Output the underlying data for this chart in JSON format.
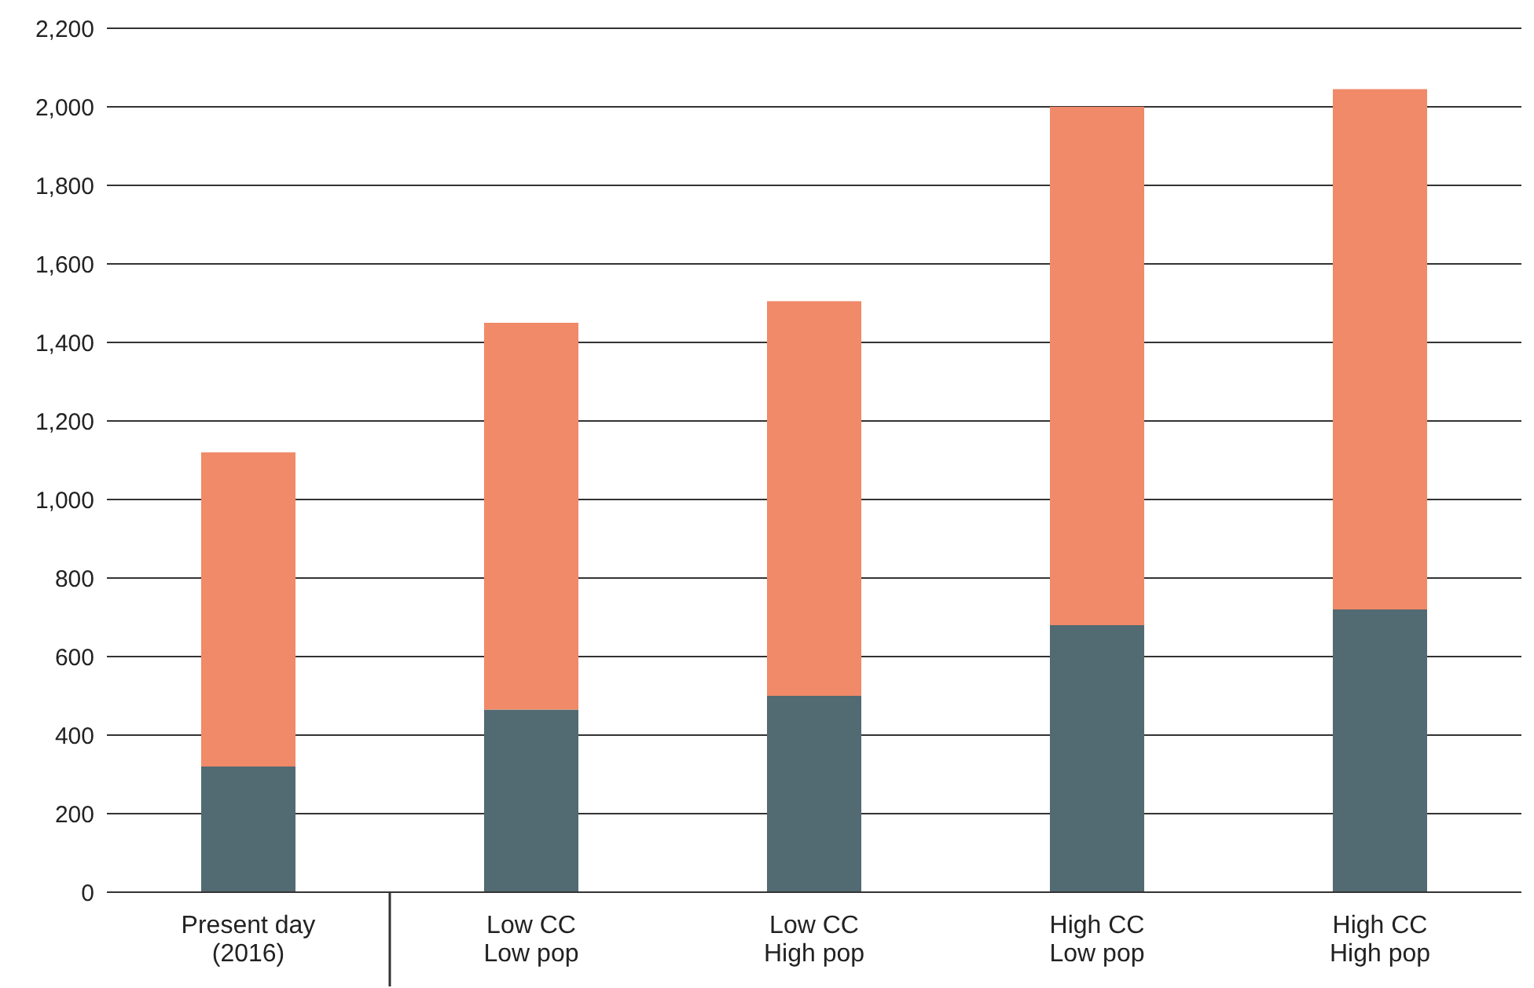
{
  "chart_data": {
    "type": "bar",
    "stacked": true,
    "categories": [
      "Present day\n(2016)",
      "Low CC\nLow pop",
      "Low CC\nHigh pop",
      "High CC\nLow pop",
      "High CC\nHigh pop"
    ],
    "series": [
      {
        "color": "#526a72",
        "values": [
          320,
          465,
          500,
          680,
          720
        ]
      },
      {
        "color": "#f08a68",
        "values": [
          800,
          985,
          1005,
          1320,
          1325
        ]
      }
    ],
    "ylim": [
      0,
      2200
    ],
    "yticks": [
      {
        "value": 0,
        "label": "0"
      },
      {
        "value": 200,
        "label": "200"
      },
      {
        "value": 400,
        "label": "400"
      },
      {
        "value": 600,
        "label": "600"
      },
      {
        "value": 800,
        "label": "800"
      },
      {
        "value": 1000,
        "label": "1,000"
      },
      {
        "value": 1200,
        "label": "1,200"
      },
      {
        "value": 1400,
        "label": "1,400"
      },
      {
        "value": 1600,
        "label": "1,600"
      },
      {
        "value": 1800,
        "label": "1,800"
      },
      {
        "value": 2000,
        "label": "2,000"
      },
      {
        "value": 2200,
        "label": "2,200"
      }
    ],
    "grid": "y",
    "legend": false
  }
}
